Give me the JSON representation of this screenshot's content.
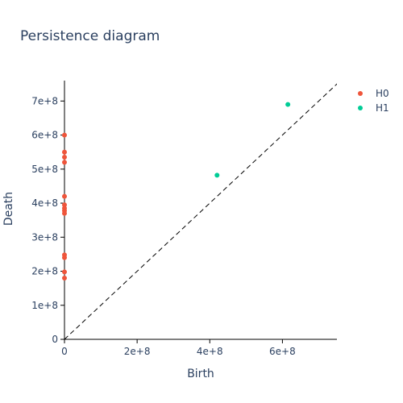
{
  "chart_data": {
    "type": "scatter",
    "title": "Persistence diagram",
    "xlabel": "Birth",
    "ylabel": "Death",
    "xlim": [
      0,
      750000000
    ],
    "ylim": [
      0,
      760000000
    ],
    "x_ticks": [
      0,
      200000000,
      400000000,
      600000000
    ],
    "x_tick_labels": [
      "0",
      "2e+8",
      "4e+8",
      "6e+8"
    ],
    "y_ticks": [
      0,
      100000000,
      200000000,
      300000000,
      400000000,
      500000000,
      600000000,
      700000000
    ],
    "y_tick_labels": [
      "0",
      "1e+8",
      "2e+8",
      "3e+8",
      "4e+8",
      "5e+8",
      "6e+8",
      "7e+8"
    ],
    "diagonal": true,
    "grid": false,
    "legend_position": "top-right",
    "series": [
      {
        "name": "H0",
        "color": "#EF553B",
        "points": [
          {
            "x": 0,
            "y": 600000000
          },
          {
            "x": 0,
            "y": 550000000
          },
          {
            "x": 0,
            "y": 535000000
          },
          {
            "x": 0,
            "y": 520000000
          },
          {
            "x": 0,
            "y": 420000000
          },
          {
            "x": 0,
            "y": 395000000
          },
          {
            "x": 0,
            "y": 385000000
          },
          {
            "x": 0,
            "y": 378000000
          },
          {
            "x": 0,
            "y": 370000000
          },
          {
            "x": 0,
            "y": 248000000
          },
          {
            "x": 0,
            "y": 240000000
          },
          {
            "x": 0,
            "y": 198000000
          },
          {
            "x": 0,
            "y": 180000000
          }
        ]
      },
      {
        "name": "H1",
        "color": "#00CC96",
        "points": [
          {
            "x": 420000000,
            "y": 482000000
          },
          {
            "x": 615000000,
            "y": 690000000
          }
        ]
      }
    ]
  }
}
